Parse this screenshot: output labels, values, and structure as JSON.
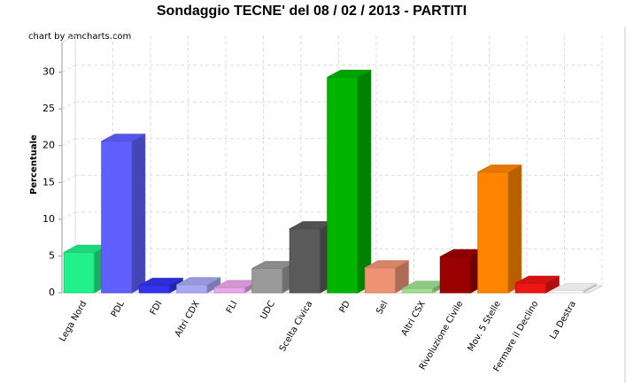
{
  "chart_data": {
    "type": "bar3d",
    "title": "Sondaggio TECNE' del 08 / 02 / 2013 - PARTITI",
    "credit": "chart by amcharts.com",
    "y_label": "Percentuale",
    "categories": [
      "Lega Nord",
      "PDL",
      "FDI",
      "Altri CDX",
      "FLI",
      "UDC",
      "Scelta Civica",
      "PD",
      "Sel",
      "Altri CSX",
      "Rivoluzione Civile",
      "Mov. 5 Stelle",
      "Fermare il Declino",
      "La Destra"
    ],
    "values": [
      5.5,
      20.6,
      1.0,
      1.1,
      0.7,
      3.3,
      8.7,
      29.3,
      3.4,
      0.6,
      4.9,
      16.4,
      1.3,
      0.3
    ],
    "colors": [
      "#22f088",
      "#6060ff",
      "#3333ee",
      "#a8a8f4",
      "#eaa6ea",
      "#9a9a9a",
      "#5a5a5a",
      "#00b400",
      "#ee9474",
      "#a0e090",
      "#9a0000",
      "#ff8400",
      "#ee1515",
      "#ffffff"
    ],
    "ylim": [
      0,
      35
    ],
    "yticks": [
      0,
      5,
      10,
      15,
      20,
      25,
      30
    ],
    "grid": true
  }
}
